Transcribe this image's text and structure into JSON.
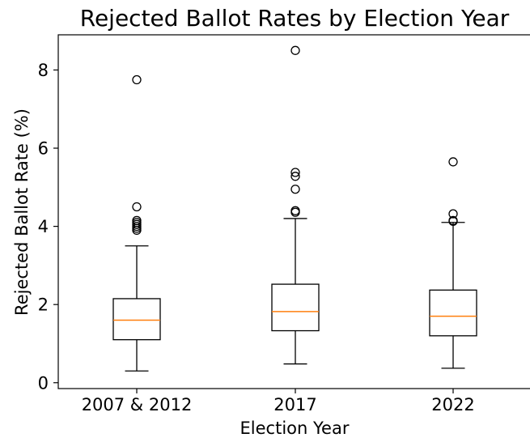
{
  "chart_data": {
    "type": "box",
    "title": "Rejected Ballot Rates by Election Year",
    "xlabel": "Election Year",
    "ylabel": "Rejected Ballot Rate (%)",
    "categories": [
      "2007 & 2012",
      "2017",
      "2022"
    ],
    "yticks": [
      "0",
      "2",
      "4",
      "6",
      "8"
    ],
    "ylim": [
      -0.15,
      8.9
    ],
    "grid": false,
    "colors": {
      "box": "#000000",
      "median": "#ff7f0e",
      "outlier": "#000000"
    },
    "boxes": [
      {
        "category": "2007 & 2012",
        "whisker_low": 0.3,
        "q1": 1.1,
        "median": 1.6,
        "q3": 2.15,
        "whisker_high": 3.5,
        "outliers": [
          3.9,
          3.95,
          4.0,
          4.05,
          4.1,
          4.15,
          4.5,
          7.75
        ]
      },
      {
        "category": "2017",
        "whisker_low": 0.48,
        "q1": 1.33,
        "median": 1.82,
        "q3": 2.52,
        "whisker_high": 4.2,
        "outliers": [
          4.36,
          4.4,
          4.95,
          5.28,
          5.38,
          8.5
        ]
      },
      {
        "category": "2022",
        "whisker_low": 0.37,
        "q1": 1.2,
        "median": 1.7,
        "q3": 2.37,
        "whisker_high": 4.1,
        "outliers": [
          4.13,
          4.15,
          4.32,
          5.65
        ]
      }
    ]
  }
}
